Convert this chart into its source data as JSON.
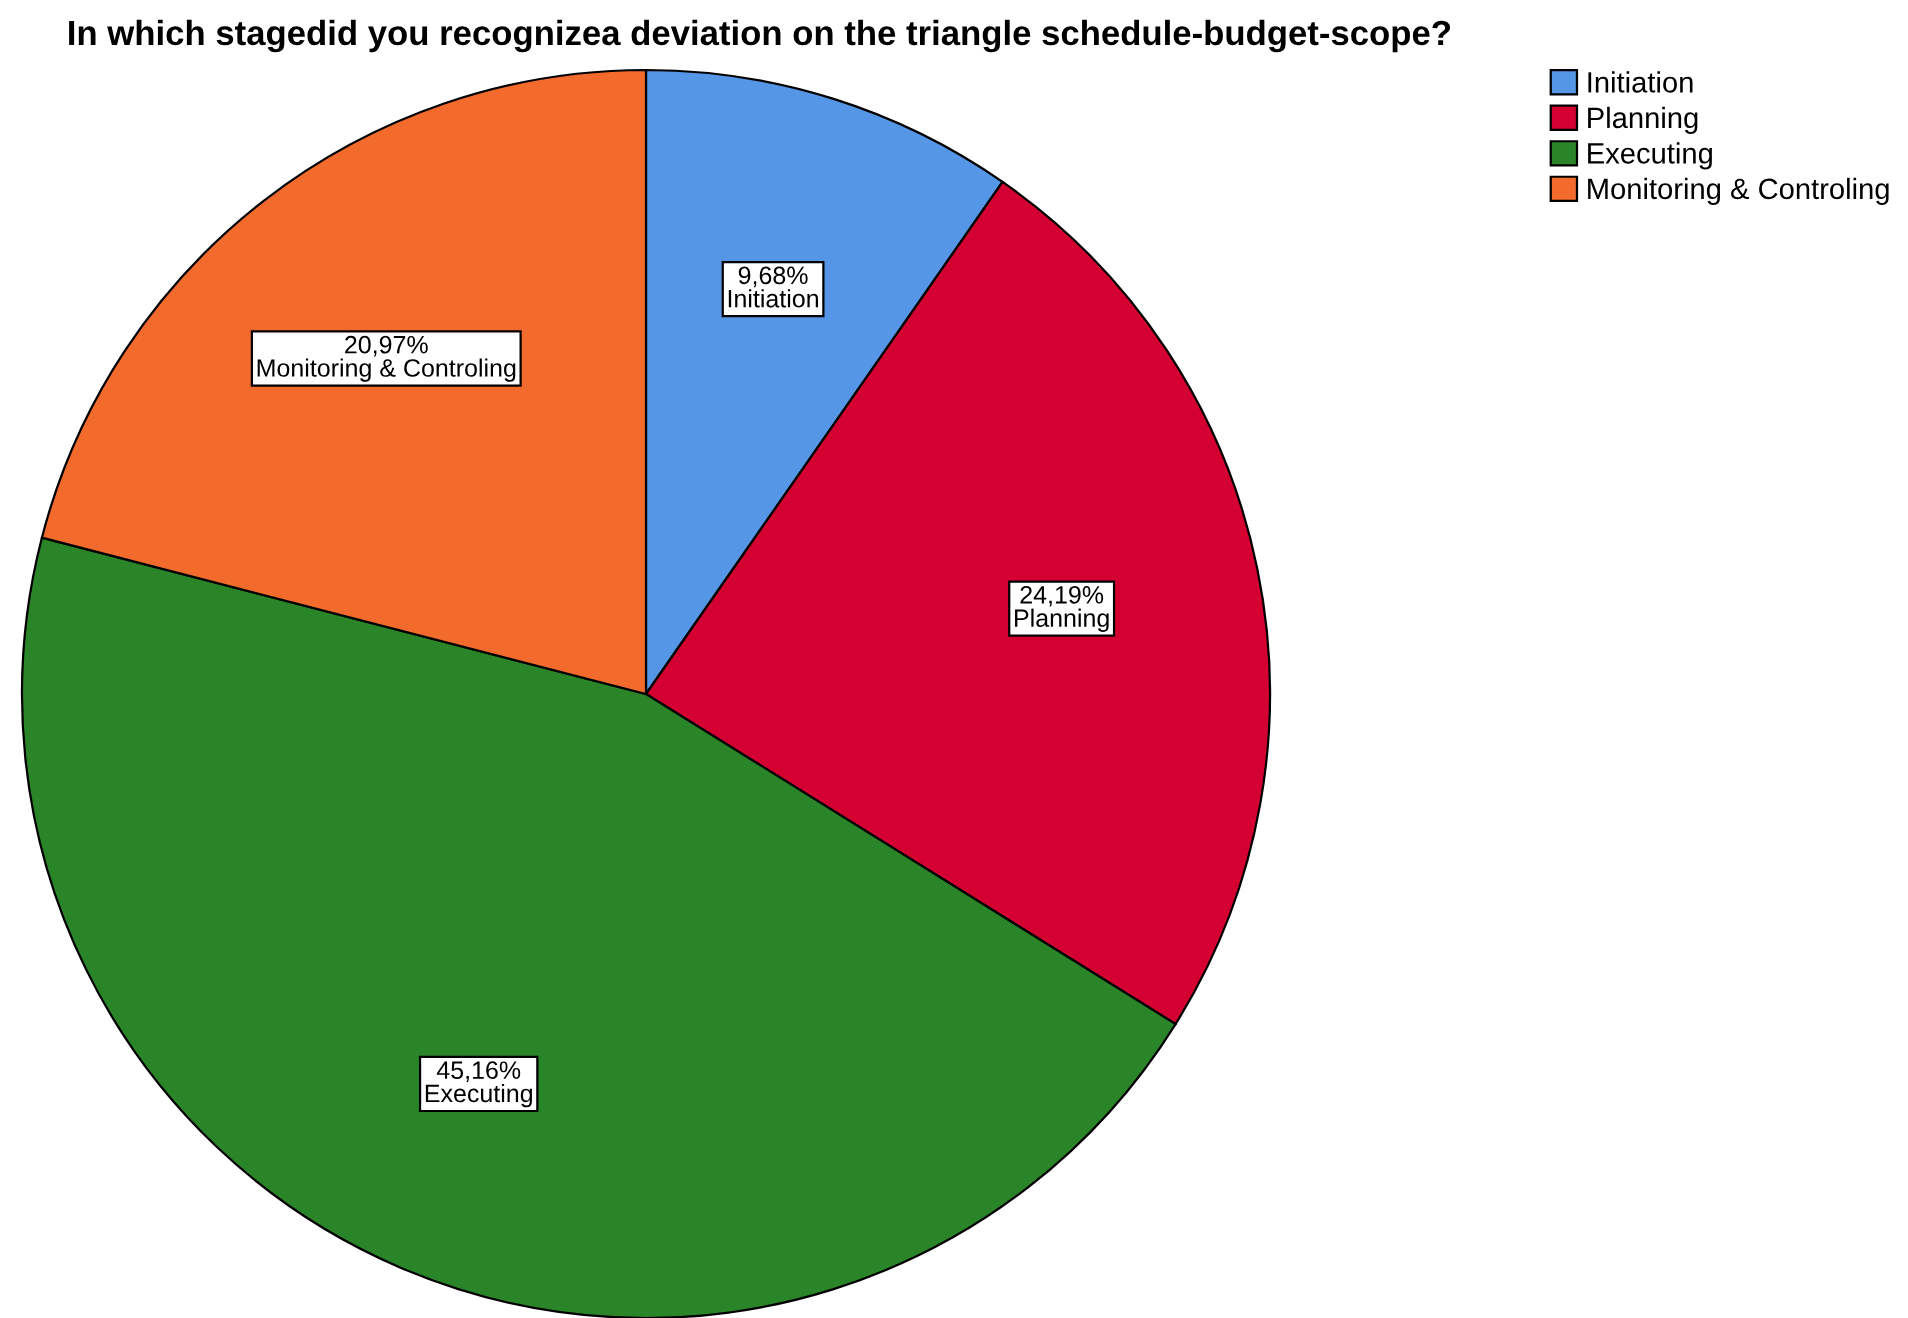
{
  "chart_data": {
    "type": "pie",
    "title": "In which stagedid you recognizea deviation on the triangle schedule-budget-scope?",
    "categories": [
      "Initiation",
      "Planning",
      "Executing",
      "Monitoring & Controling"
    ],
    "values": [
      9.68,
      24.19,
      45.16,
      20.97
    ],
    "value_labels": [
      "9,68%",
      "24,19%",
      "45,16%",
      "20,97%"
    ],
    "colors": [
      "#5596e6",
      "#d30031",
      "#2a8529",
      "#f26b2c"
    ],
    "legend": "top right"
  }
}
